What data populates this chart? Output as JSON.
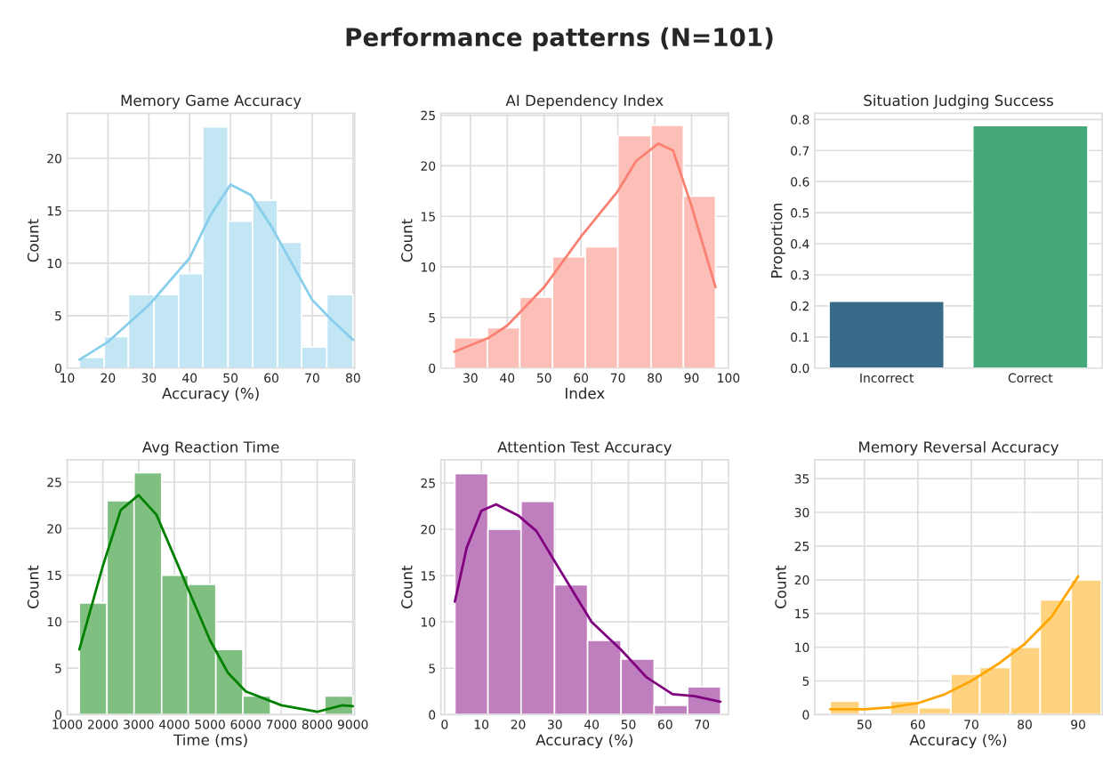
{
  "chart_data": [
    {
      "type": "histogram",
      "title": "Memory Game Accuracy",
      "xlabel": "Accuracy (%)",
      "ylabel": "Count",
      "annotations": [
        "Performance patterns (N=101)"
      ],
      "bins": [
        13,
        19.1,
        25.0,
        31.3,
        37.3,
        43.2,
        49.4,
        55.4,
        61.5,
        67.4,
        73.6,
        80
      ],
      "series": [
        {
          "type": "histogram",
          "color": "#c3e6f5",
          "values": [
            1,
            3,
            7,
            7,
            9,
            23,
            14,
            16,
            12,
            2,
            7
          ]
        },
        {
          "type": "line",
          "color": "#87ceeb",
          "x": [
            13,
            20,
            30,
            40,
            45,
            50,
            55,
            60,
            65,
            70,
            75,
            80
          ],
          "values": [
            0.8,
            2.5,
            6,
            10.5,
            14.5,
            17.5,
            16.5,
            13.5,
            10,
            6.5,
            4.5,
            2.7
          ]
        }
      ],
      "xlim": [
        10,
        80.4
      ],
      "xticks": [
        10,
        20,
        30,
        40,
        50,
        60,
        70,
        80
      ],
      "ylim": [
        0,
        24.3
      ],
      "yticks": [
        0,
        5,
        10,
        15,
        20
      ],
      "grid": true
    },
    {
      "type": "histogram",
      "title": "AI Dependency Index",
      "xlabel": "Index",
      "ylabel": "Count",
      "bins": [
        25.6,
        34.6,
        43.4,
        52.3,
        61.2,
        70.0,
        79.0,
        87.8,
        96.5
      ],
      "series": [
        {
          "type": "histogram",
          "color": "#fcbfb8",
          "values": [
            3,
            4,
            7,
            11,
            12,
            23,
            24,
            17
          ]
        },
        {
          "type": "line",
          "color": "#fa8072",
          "x": [
            25.6,
            35,
            40,
            50,
            60,
            70,
            75,
            81,
            85,
            90,
            96.5
          ],
          "values": [
            1.6,
            3,
            4.2,
            8,
            13,
            17.5,
            20.5,
            22.2,
            21.5,
            16,
            8
          ]
        }
      ],
      "xlim": [
        22,
        100
      ],
      "xticks": [
        30,
        40,
        50,
        60,
        70,
        80,
        90,
        100
      ],
      "ylim": [
        0,
        25.2
      ],
      "yticks": [
        0,
        5,
        10,
        15,
        20,
        25
      ],
      "grid": true
    },
    {
      "type": "bar",
      "title": "Situation Judging Success",
      "ylabel": "Proportion",
      "categories": [
        "Incorrect",
        "Correct"
      ],
      "values": [
        0.215,
        0.78
      ],
      "colors": [
        "#3a6a8a",
        "#45a878"
      ],
      "ylim": [
        0,
        0.82
      ],
      "yticks": [
        {
          "value": 0,
          "label": "0.0"
        },
        0.1,
        0.2,
        0.3,
        0.4,
        0.5,
        0.6,
        0.7,
        0.8
      ],
      "grid": "y"
    },
    {
      "type": "histogram",
      "title": "Avg Reaction Time",
      "xlabel": "Time (ms)",
      "ylabel": "Count",
      "bins": [
        1342,
        2115,
        2874,
        3647,
        4390,
        5164,
        5922,
        6695,
        8212,
        9000
      ],
      "series": [
        {
          "type": "histogram",
          "color": "#7fbf7f",
          "values": [
            12,
            23,
            26,
            15,
            14,
            7,
            2,
            0,
            2
          ]
        },
        {
          "type": "line",
          "color": "#008000",
          "x": [
            1342,
            2000,
            2500,
            3000,
            3500,
            4000,
            4500,
            5000,
            5500,
            6000,
            7000,
            8000,
            8700,
            9000
          ],
          "values": [
            7,
            16,
            22,
            23.6,
            21.5,
            17,
            12.5,
            8,
            4.5,
            2.5,
            1,
            0.3,
            1,
            0.9
          ]
        }
      ],
      "xlim": [
        1000,
        9050
      ],
      "xticks": [
        1000,
        2000,
        3000,
        4000,
        5000,
        6000,
        7000,
        8000,
        9000
      ],
      "ylim": [
        0,
        27.4
      ],
      "yticks": [
        0,
        5,
        10,
        15,
        20,
        25
      ],
      "grid": true
    },
    {
      "type": "histogram",
      "title": "Attention Test Accuracy",
      "xlabel": "Accuracy (%)",
      "ylabel": "Count",
      "bins": [
        2.8,
        11.8,
        20.8,
        29.9,
        38.9,
        48.0,
        57.0,
        66.1,
        75.1
      ],
      "series": [
        {
          "type": "histogram",
          "color": "#bf7fbf",
          "values": [
            26,
            20,
            23,
            14,
            8,
            6,
            1,
            3
          ]
        },
        {
          "type": "line",
          "color": "#800080",
          "x": [
            2.8,
            6,
            10,
            14,
            20,
            25,
            30,
            40,
            48,
            55,
            62,
            68,
            75
          ],
          "values": [
            12.2,
            18,
            22,
            22.7,
            21.5,
            19.8,
            16.5,
            10,
            7,
            4,
            2.2,
            2,
            1.4
          ]
        }
      ],
      "xlim": [
        -1,
        77.2
      ],
      "xticks": [
        0,
        10,
        20,
        30,
        40,
        50,
        60,
        70
      ],
      "ylim": [
        0,
        27.5
      ],
      "yticks": [
        0,
        5,
        10,
        15,
        20,
        25
      ],
      "grid": true
    },
    {
      "type": "histogram",
      "title": "Memory Reversal Accuracy",
      "xlabel": "Accuracy (%)",
      "ylabel": "Count",
      "bins": [
        43.6,
        49.1,
        54.9,
        60.2,
        66.2,
        71.6,
        77.3,
        82.9,
        88.7,
        94.3
      ],
      "series": [
        {
          "type": "histogram",
          "color": "#ffd27f",
          "values": [
            2,
            0,
            2,
            1,
            6,
            7,
            10,
            17,
            20
          ]
        },
        {
          "type": "line",
          "color": "#ffa500",
          "x": [
            43.6,
            50,
            55,
            60,
            65,
            70,
            75,
            80,
            85,
            90
          ],
          "values": [
            0.8,
            0.8,
            1.1,
            1.7,
            3,
            5,
            7.5,
            10.5,
            14.5,
            20.5
          ]
        }
      ],
      "xlim": [
        40.7,
        94.5
      ],
      "xticks": [
        50,
        60,
        70,
        80,
        90
      ],
      "ylim": [
        0,
        37.8
      ],
      "yticks": [
        0,
        5,
        10,
        15,
        20,
        25,
        30,
        35
      ],
      "grid": true
    }
  ]
}
